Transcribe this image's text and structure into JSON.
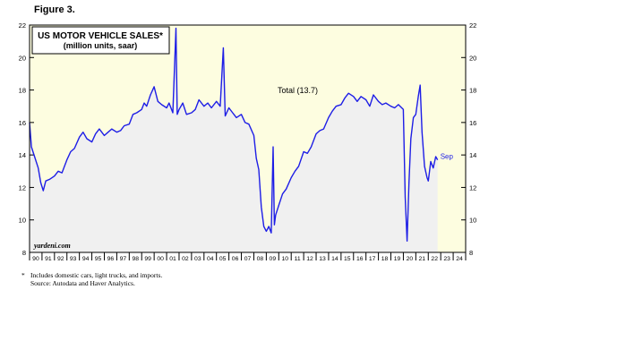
{
  "figure_label": "Figure 3.",
  "footnote": {
    "marker": "*",
    "note": "Includes domestic cars, light trucks, and imports.",
    "source": "Source: Autodata and Haver Analytics."
  },
  "colors": {
    "plot_bg": "#fdfde0",
    "area_fill": "#f0f0f0",
    "line": "#1e1ee6",
    "label": "#1e1ee6"
  },
  "chart_data": {
    "type": "area",
    "title": "US MOTOR VEHICLE SALES*",
    "subtitle": "(million units, saar)",
    "watermark": "yardeni.com",
    "xlabel": "",
    "ylabel": "",
    "xlim": [
      1990,
      2025
    ],
    "ylim": [
      8,
      22
    ],
    "y_ticks": [
      8,
      10,
      12,
      14,
      16,
      18,
      20,
      22
    ],
    "x_tick_labels": [
      "90",
      "91",
      "92",
      "93",
      "94",
      "95",
      "96",
      "97",
      "98",
      "99",
      "00",
      "01",
      "02",
      "03",
      "04",
      "05",
      "06",
      "07",
      "08",
      "09",
      "10",
      "11",
      "12",
      "13",
      "14",
      "15",
      "16",
      "17",
      "18",
      "19",
      "20",
      "21",
      "22",
      "23",
      "24"
    ],
    "grid": false,
    "series": [
      {
        "name": "Total (13.7)",
        "end_label": "Sep",
        "x": [
          1990.0,
          1990.15,
          1990.4,
          1990.7,
          1990.9,
          1991.1,
          1991.3,
          1991.6,
          1992.0,
          1992.3,
          1992.6,
          1993.0,
          1993.3,
          1993.6,
          1994.0,
          1994.3,
          1994.6,
          1995.0,
          1995.3,
          1995.6,
          1996.0,
          1996.3,
          1996.6,
          1997.0,
          1997.3,
          1997.6,
          1998.0,
          1998.3,
          1998.6,
          1999.0,
          1999.2,
          1999.4,
          1999.7,
          2000.0,
          2000.3,
          2000.6,
          2001.0,
          2001.2,
          2001.5,
          2001.75,
          2001.85,
          2002.0,
          2002.3,
          2002.6,
          2003.0,
          2003.3,
          2003.6,
          2004.0,
          2004.3,
          2004.6,
          2005.0,
          2005.3,
          2005.55,
          2005.7,
          2006.0,
          2006.3,
          2006.6,
          2007.0,
          2007.3,
          2007.6,
          2008.0,
          2008.2,
          2008.4,
          2008.6,
          2008.8,
          2009.0,
          2009.2,
          2009.4,
          2009.55,
          2009.65,
          2009.75,
          2010.0,
          2010.3,
          2010.6,
          2011.0,
          2011.3,
          2011.6,
          2012.0,
          2012.3,
          2012.6,
          2013.0,
          2013.3,
          2013.6,
          2014.0,
          2014.3,
          2014.6,
          2015.0,
          2015.3,
          2015.6,
          2016.0,
          2016.3,
          2016.6,
          2017.0,
          2017.3,
          2017.6,
          2018.0,
          2018.3,
          2018.6,
          2019.0,
          2019.3,
          2019.6,
          2020.0,
          2020.15,
          2020.3,
          2020.45,
          2020.6,
          2020.8,
          2021.0,
          2021.2,
          2021.35,
          2021.5,
          2021.7,
          2021.9,
          2022.0,
          2022.2,
          2022.4,
          2022.6,
          2022.75
        ],
        "y": [
          16.0,
          14.5,
          13.9,
          13.2,
          12.3,
          11.8,
          12.4,
          12.5,
          12.7,
          13.0,
          12.9,
          13.7,
          14.2,
          14.4,
          15.1,
          15.4,
          15.0,
          14.8,
          15.3,
          15.6,
          15.2,
          15.4,
          15.6,
          15.4,
          15.5,
          15.8,
          15.9,
          16.5,
          16.6,
          16.8,
          17.2,
          17.0,
          17.7,
          18.2,
          17.3,
          17.1,
          16.9,
          17.2,
          16.6,
          21.8,
          16.5,
          16.8,
          17.2,
          16.5,
          16.6,
          16.8,
          17.4,
          17.0,
          17.2,
          16.9,
          17.3,
          17.0,
          20.6,
          16.4,
          16.9,
          16.6,
          16.3,
          16.5,
          16.0,
          15.9,
          15.2,
          13.8,
          13.1,
          10.8,
          9.6,
          9.3,
          9.6,
          9.2,
          14.5,
          9.7,
          10.3,
          10.9,
          11.6,
          11.9,
          12.6,
          13.0,
          13.3,
          14.2,
          14.1,
          14.5,
          15.3,
          15.5,
          15.6,
          16.3,
          16.7,
          17.0,
          17.1,
          17.5,
          17.8,
          17.6,
          17.3,
          17.6,
          17.4,
          17.0,
          17.7,
          17.3,
          17.1,
          17.2,
          17.0,
          16.9,
          17.1,
          16.8,
          11.4,
          8.7,
          12.3,
          15.0,
          16.3,
          16.5,
          17.6,
          18.3,
          15.4,
          13.3,
          12.6,
          12.4,
          13.6,
          13.2,
          13.9,
          13.7
        ]
      }
    ]
  }
}
